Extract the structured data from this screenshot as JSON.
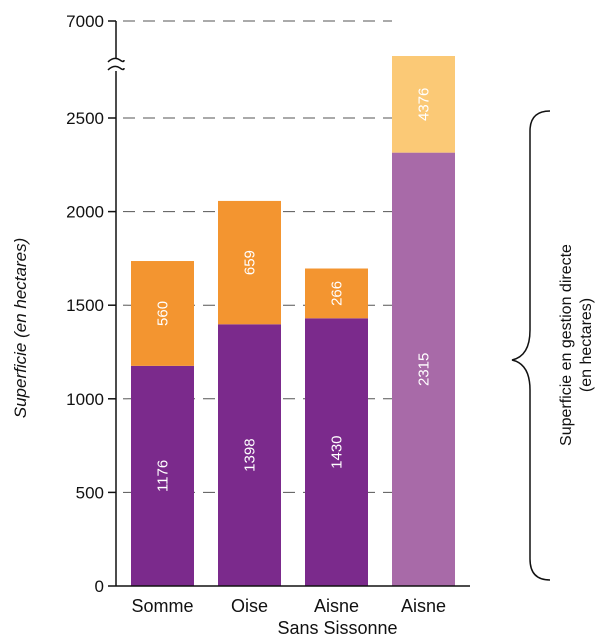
{
  "chart_data": {
    "type": "bar",
    "stacked": true,
    "categories": [
      "Somme",
      "Oise",
      "Aisne",
      "Aisne"
    ],
    "category_sublabels": [
      "",
      "",
      "",
      "Sans Sissonne"
    ],
    "series": [
      {
        "values": [
          1176,
          1398,
          1430,
          2315
        ]
      },
      {
        "values": [
          560,
          659,
          266,
          4376
        ]
      }
    ],
    "colors": {
      "lower": "#7B2A8C",
      "upper": "#F39530",
      "lower_highlight": "#A86AA8",
      "upper_highlight": "#FBC976"
    },
    "ylabel": "Superficie (en hectares)",
    "y_ticks": [
      0,
      500,
      1000,
      1500,
      2000,
      2500,
      7000
    ],
    "axis_break": true,
    "ylim": [
      0,
      7000
    ],
    "grid": true,
    "brace_note": "Superficie en gestion directe (en hectares)",
    "brace_note_lines": [
      "Superficie en gestion directe",
      "(en hectares)"
    ]
  }
}
